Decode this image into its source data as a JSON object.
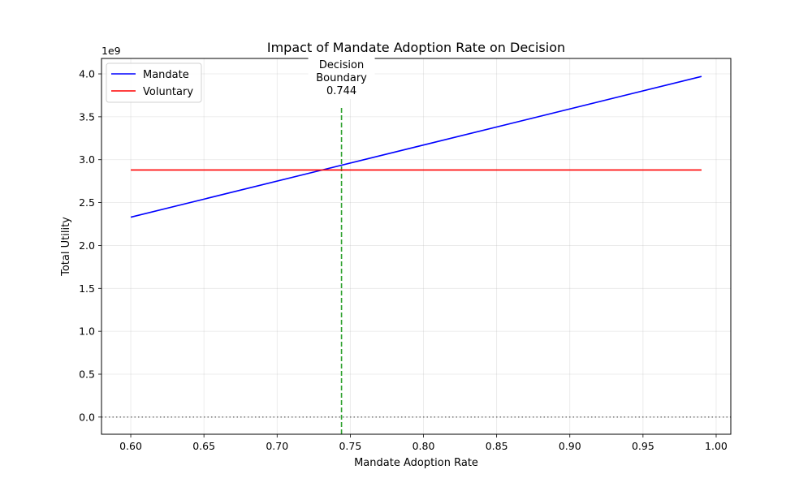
{
  "chart_data": {
    "type": "line",
    "title": "Impact of Mandate Adoption Rate on Decision",
    "xlabel": "Mandate Adoption Rate",
    "ylabel": "Total Utility",
    "y_scale_label": "1e9",
    "xlim": [
      0.58,
      1.01
    ],
    "ylim": [
      -0.2,
      4.18
    ],
    "y_multiplier": 1000000000,
    "x_ticks": [
      0.6,
      0.65,
      0.7,
      0.75,
      0.8,
      0.85,
      0.9,
      0.95,
      1.0
    ],
    "x_tick_labels": [
      "0.60",
      "0.65",
      "0.70",
      "0.75",
      "0.80",
      "0.85",
      "0.90",
      "0.95",
      "1.00"
    ],
    "y_ticks": [
      0.0,
      0.5,
      1.0,
      1.5,
      2.0,
      2.5,
      3.0,
      3.5,
      4.0
    ],
    "y_tick_labels": [
      "0.0",
      "0.5",
      "1.0",
      "1.5",
      "2.0",
      "2.5",
      "3.0",
      "3.5",
      "4.0"
    ],
    "grid": true,
    "legend_position": "top-left",
    "series": [
      {
        "name": "Mandate",
        "color": "#0000ff",
        "x": [
          0.6,
          0.99
        ],
        "y": [
          2.33,
          3.97
        ]
      },
      {
        "name": "Voluntary",
        "color": "#ff0000",
        "x": [
          0.6,
          0.99
        ],
        "y": [
          2.88,
          2.88
        ]
      }
    ],
    "reference_lines": [
      {
        "orientation": "vertical",
        "value": 0.744,
        "color": "#2ca02c",
        "style": "dashed",
        "y_end": 3.62
      },
      {
        "orientation": "horizontal",
        "value": 0.0,
        "color": "#808080",
        "style": "dotted"
      }
    ],
    "annotation": {
      "lines": [
        "Decision",
        "Boundary",
        "0.744"
      ],
      "x": 0.744
    }
  }
}
